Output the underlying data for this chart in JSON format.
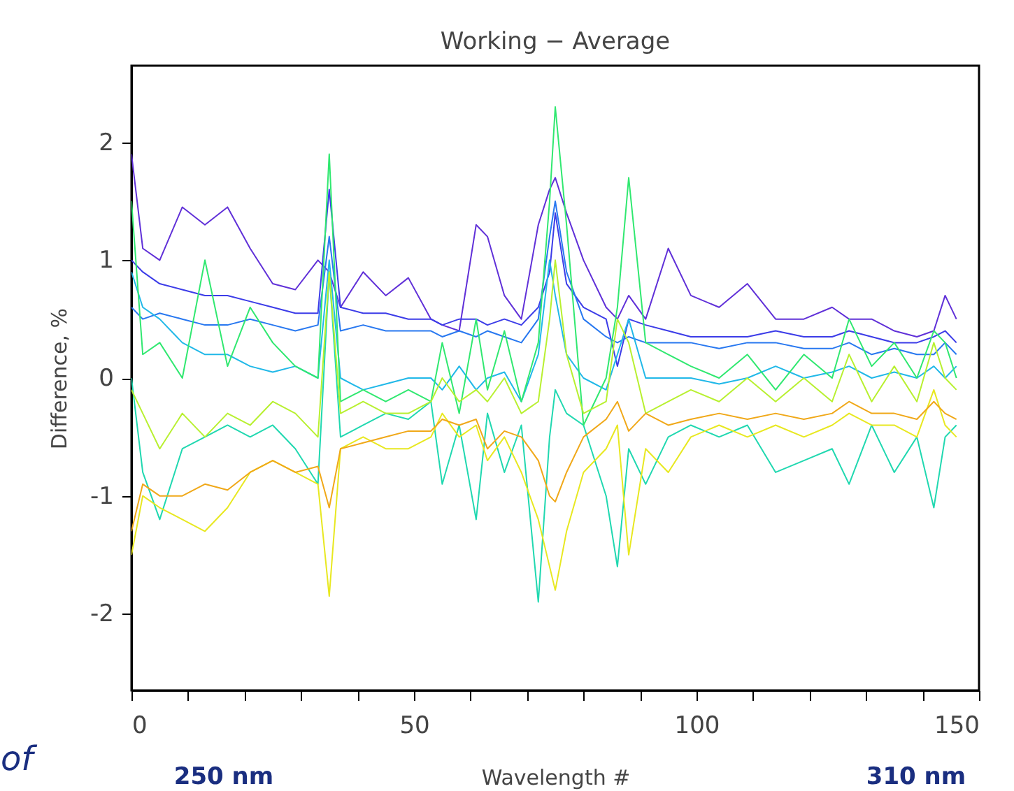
{
  "chart_data": {
    "type": "line",
    "title": "Working − Average",
    "xlabel": "Wavelength #",
    "ylabel": "Difference, %",
    "xlim": [
      0,
      150
    ],
    "ylim": [
      -2.65,
      2.65
    ],
    "xticks": [
      0,
      {
        "value": 10,
        "label": null
      },
      {
        "value": 20,
        "label": null
      },
      {
        "value": 30,
        "label": null
      },
      {
        "value": 40,
        "label": null
      },
      50,
      {
        "value": 60,
        "label": null
      },
      {
        "value": 70,
        "label": null
      },
      {
        "value": 80,
        "label": null
      },
      {
        "value": 90,
        "label": null
      },
      100,
      {
        "value": 110,
        "label": null
      },
      {
        "value": 120,
        "label": null
      },
      {
        "value": 130,
        "label": null
      },
      {
        "value": 140,
        "label": null
      },
      150
    ],
    "yticks": [
      -2,
      -1,
      0,
      1,
      2
    ],
    "grid": false,
    "legend": false,
    "marker": "none",
    "line_style": "solid",
    "x": [
      0,
      2,
      5,
      9,
      13,
      17,
      21,
      25,
      29,
      33,
      35,
      37,
      41,
      45,
      49,
      53,
      55,
      58,
      61,
      63,
      66,
      69,
      72,
      74,
      75,
      77,
      80,
      84,
      86,
      88,
      91,
      95,
      99,
      104,
      109,
      114,
      119,
      124,
      127,
      131,
      135,
      139,
      142,
      144,
      146
    ],
    "series": [
      {
        "color": "#6030d8",
        "values": [
          1.9,
          1.1,
          1.0,
          1.45,
          1.3,
          1.45,
          1.1,
          0.8,
          0.75,
          1.0,
          0.9,
          0.6,
          0.9,
          0.7,
          0.85,
          0.5,
          0.45,
          0.4,
          1.3,
          1.2,
          0.7,
          0.5,
          1.3,
          1.6,
          1.7,
          1.4,
          1.0,
          0.6,
          0.5,
          0.7,
          0.5,
          1.1,
          0.7,
          0.6,
          0.8,
          0.5,
          0.5,
          0.6,
          0.5,
          0.5,
          0.4,
          0.35,
          0.4,
          0.7,
          0.5
        ]
      },
      {
        "color": "#3c3ce8",
        "values": [
          1.0,
          0.9,
          0.8,
          0.75,
          0.7,
          0.7,
          0.65,
          0.6,
          0.55,
          0.55,
          1.6,
          0.6,
          0.55,
          0.55,
          0.5,
          0.5,
          0.45,
          0.5,
          0.5,
          0.45,
          0.5,
          0.45,
          0.6,
          0.9,
          1.4,
          0.8,
          0.6,
          0.5,
          0.1,
          0.5,
          0.45,
          0.4,
          0.35,
          0.35,
          0.35,
          0.4,
          0.35,
          0.35,
          0.4,
          0.35,
          0.3,
          0.3,
          0.35,
          0.4,
          0.3
        ]
      },
      {
        "color": "#2878f0",
        "values": [
          0.6,
          0.5,
          0.55,
          0.5,
          0.45,
          0.45,
          0.5,
          0.45,
          0.4,
          0.45,
          1.2,
          0.4,
          0.45,
          0.4,
          0.4,
          0.4,
          0.35,
          0.4,
          0.35,
          0.4,
          0.35,
          0.3,
          0.5,
          1.2,
          1.5,
          0.9,
          0.5,
          0.35,
          0.3,
          0.35,
          0.3,
          0.3,
          0.3,
          0.25,
          0.3,
          0.3,
          0.25,
          0.25,
          0.3,
          0.2,
          0.25,
          0.2,
          0.2,
          0.3,
          0.2
        ]
      },
      {
        "color": "#20b8e8",
        "values": [
          0.9,
          0.6,
          0.5,
          0.3,
          0.2,
          0.2,
          0.1,
          0.05,
          0.1,
          0.0,
          1.0,
          0.0,
          -0.1,
          -0.05,
          0.0,
          0.0,
          -0.1,
          0.1,
          -0.1,
          0.0,
          0.05,
          -0.2,
          0.2,
          1.0,
          0.7,
          0.2,
          0.0,
          -0.1,
          0.2,
          0.5,
          0.0,
          0.0,
          0.0,
          -0.05,
          0.0,
          0.1,
          0.0,
          0.05,
          0.1,
          0.0,
          0.05,
          0.0,
          0.1,
          0.0,
          0.1
        ]
      },
      {
        "color": "#20d8b0",
        "values": [
          0.0,
          -0.8,
          -1.2,
          -0.6,
          -0.5,
          -0.4,
          -0.5,
          -0.4,
          -0.6,
          -0.9,
          0.9,
          -0.5,
          -0.4,
          -0.3,
          -0.35,
          -0.2,
          -0.9,
          -0.4,
          -1.2,
          -0.3,
          -0.8,
          -0.4,
          -1.9,
          -0.5,
          -0.1,
          -0.3,
          -0.4,
          -1.0,
          -1.6,
          -0.6,
          -0.9,
          -0.5,
          -0.4,
          -0.5,
          -0.4,
          -0.8,
          -0.7,
          -0.6,
          -0.9,
          -0.4,
          -0.8,
          -0.5,
          -1.1,
          -0.5,
          -0.4
        ]
      },
      {
        "color": "#30e870",
        "values": [
          1.5,
          0.2,
          0.3,
          0.0,
          1.0,
          0.1,
          0.6,
          0.3,
          0.1,
          0.0,
          1.9,
          -0.2,
          -0.1,
          -0.2,
          -0.1,
          -0.2,
          0.3,
          -0.3,
          0.5,
          -0.1,
          0.4,
          -0.2,
          0.3,
          1.5,
          2.3,
          1.3,
          -0.4,
          0.0,
          0.6,
          1.7,
          0.3,
          0.2,
          0.1,
          0.0,
          0.2,
          -0.1,
          0.2,
          0.0,
          0.5,
          0.1,
          0.3,
          0.0,
          0.4,
          0.3,
          0.0
        ]
      },
      {
        "color": "#b8f030",
        "values": [
          -0.1,
          -0.3,
          -0.6,
          -0.3,
          -0.5,
          -0.3,
          -0.4,
          -0.2,
          -0.3,
          -0.5,
          0.9,
          -0.3,
          -0.2,
          -0.3,
          -0.3,
          -0.2,
          0.0,
          -0.2,
          -0.1,
          -0.2,
          0.0,
          -0.3,
          -0.2,
          0.5,
          1.0,
          0.2,
          -0.3,
          -0.2,
          0.5,
          0.3,
          -0.3,
          -0.2,
          -0.1,
          -0.2,
          0.0,
          -0.2,
          0.0,
          -0.2,
          0.2,
          -0.2,
          0.1,
          -0.2,
          0.3,
          0.0,
          -0.1
        ]
      },
      {
        "color": "#e8e820",
        "values": [
          -1.5,
          -1.0,
          -1.1,
          -1.2,
          -1.3,
          -1.1,
          -0.8,
          -0.7,
          -0.8,
          -0.9,
          -1.85,
          -0.6,
          -0.5,
          -0.6,
          -0.6,
          -0.5,
          -0.3,
          -0.5,
          -0.4,
          -0.7,
          -0.5,
          -0.8,
          -1.2,
          -1.6,
          -1.8,
          -1.3,
          -0.8,
          -0.6,
          -0.4,
          -1.5,
          -0.6,
          -0.8,
          -0.5,
          -0.4,
          -0.5,
          -0.4,
          -0.5,
          -0.4,
          -0.3,
          -0.4,
          -0.4,
          -0.5,
          -0.1,
          -0.4,
          -0.5
        ]
      },
      {
        "color": "#f0a818",
        "values": [
          -1.3,
          -0.9,
          -1.0,
          -1.0,
          -0.9,
          -0.95,
          -0.8,
          -0.7,
          -0.8,
          -0.75,
          -1.1,
          -0.6,
          -0.55,
          -0.5,
          -0.45,
          -0.45,
          -0.35,
          -0.4,
          -0.35,
          -0.6,
          -0.45,
          -0.5,
          -0.7,
          -1.0,
          -1.05,
          -0.8,
          -0.5,
          -0.35,
          -0.2,
          -0.45,
          -0.3,
          -0.4,
          -0.35,
          -0.3,
          -0.35,
          -0.3,
          -0.35,
          -0.3,
          -0.2,
          -0.3,
          -0.3,
          -0.35,
          -0.2,
          -0.3,
          -0.35
        ]
      }
    ],
    "annotations": [
      "of",
      "250 nm",
      "310 nm"
    ]
  }
}
